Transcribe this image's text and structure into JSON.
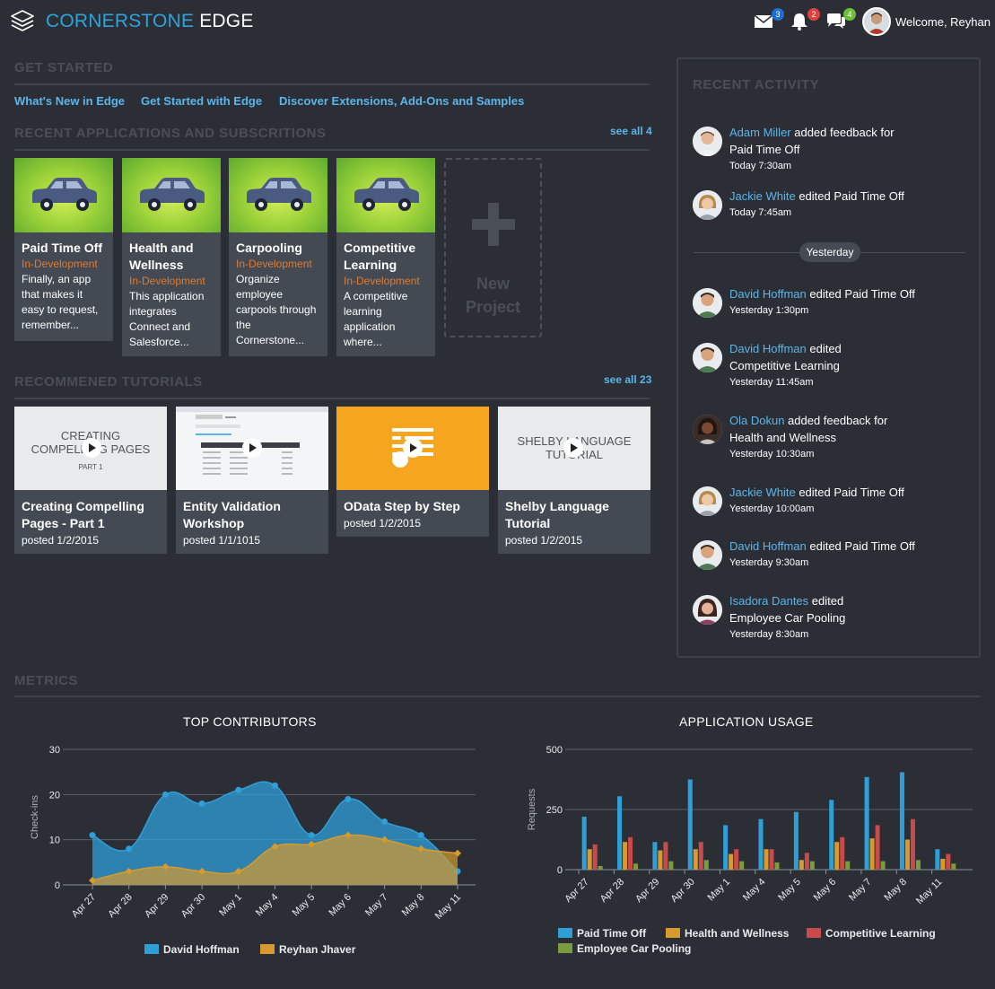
{
  "header": {
    "brand_part1": "CORNERSTONE",
    "brand_part2": "EDGE",
    "mail_count": "3",
    "alert_count": "2",
    "chat_count": "4",
    "welcome": "Welcome, Reyhan",
    "colors": {
      "accent": "#2ea3dc",
      "mail_badge": "#1f6fd1",
      "alert_badge": "#e04040",
      "chat_badge": "#6cbf3c"
    }
  },
  "get_started": {
    "title": "GET STARTED",
    "links": [
      "What's New in Edge",
      "Get Started with Edge",
      "Discover Extensions, Add-Ons and Samples"
    ]
  },
  "recent_apps": {
    "title": "RECENT APPLICATIONS AND SUBSCRITIONS",
    "see_all": "see all 4",
    "apps": [
      {
        "title_l1": "Paid Time Off",
        "title_l2": "",
        "status": "In-Development",
        "desc": [
          "Finally, an app",
          "that makes it",
          "easy to request,",
          "remember..."
        ]
      },
      {
        "title_l1": "Health and",
        "title_l2": "Wellness",
        "status": "In-Development",
        "desc": [
          "This application",
          "integrates",
          "Connect and",
          "Salesforce..."
        ]
      },
      {
        "title_l1": "Carpooling",
        "title_l2": "",
        "status": "In-Development",
        "desc": [
          "Organize",
          "employee",
          "carpools through",
          "the",
          "Cornerstone..."
        ]
      },
      {
        "title_l1": "Competitive",
        "title_l2": "Learning",
        "status": "In-Development",
        "desc": [
          "A competitive",
          "learning",
          "application",
          "where..."
        ]
      }
    ],
    "new_project_l1": "New",
    "new_project_l2": "Project"
  },
  "tutorials": {
    "title": "RECOMMENED TUTORIALS",
    "see_all": "see all 23",
    "items": [
      {
        "title_l1": "Creating Compelling",
        "title_l2": "Pages - Part 1",
        "date": "posted 1/2/2015",
        "thumb_l1": "CREATING",
        "thumb_l2": "COMPELLING PAGES",
        "thumb_l3": "PART 1"
      },
      {
        "title_l1": "Entity Validation",
        "title_l2": "Workshop",
        "date": "posted 1/1/1015"
      },
      {
        "title_l1": "OData Step by Step",
        "title_l2": "",
        "date": "posted 1/2/2015"
      },
      {
        "title_l1": "Shelby Language",
        "title_l2": "Tutorial",
        "date": "posted 1/2/2015",
        "thumb_l1": "SHELBY LANGUAGE",
        "thumb_l2": "TUTORIAL"
      }
    ]
  },
  "activity": {
    "title": "RECENT ACTIVITY",
    "divider": "Yesterday",
    "items": [
      {
        "who": "Adam Miller",
        "action": " added feedback for",
        "item": "Paid Time Off",
        "time": "Today 7:30am"
      },
      {
        "who": "Jackie White",
        "action": " edited ",
        "item": "Paid Time Off",
        "time": "Today 7:45am"
      },
      {
        "who": "David Hoffman",
        "action": " edited ",
        "item": "Paid Time Off",
        "time": "Yesterday 1:30pm"
      },
      {
        "who": "David Hoffman",
        "action": " edited",
        "item": "Competitive Learning",
        "time": "Yesterday 11:45am"
      },
      {
        "who": "Ola Dokun",
        "action": " added feedback for",
        "item": "Health and Wellness",
        "time": "Yesterday 10:30am"
      },
      {
        "who": "Jackie White",
        "action": " edited ",
        "item": "Paid Time Off",
        "time": "Yesterday 10:00am"
      },
      {
        "who": "David Hoffman",
        "action": " edited ",
        "item": "Paid Time Off",
        "time": "Yesterday 9:30am"
      },
      {
        "who": "Isadora Dantes",
        "action": " edited",
        "item": "Employee Car Pooling",
        "time": "Yesterday 8:30am"
      }
    ]
  },
  "metrics": {
    "title": "METRICS"
  },
  "chart_data": [
    {
      "type": "area",
      "title": "TOP CONTRIBUTORS",
      "ylabel": "Check-ins",
      "xlabel": "",
      "ylim": [
        0,
        30
      ],
      "yticks": [
        0,
        10,
        20,
        30
      ],
      "categories": [
        "Apr 27",
        "Apr 28",
        "Apr 29",
        "Apr 30",
        "May 1",
        "May 4",
        "May 5",
        "May 6",
        "May 7",
        "May 8",
        "May 11"
      ],
      "series": [
        {
          "name": "David Hoffman",
          "color": "#2f9fd8",
          "values": [
            11,
            8,
            20,
            18,
            21,
            22,
            11,
            19,
            14,
            11,
            3
          ]
        },
        {
          "name": "Reyhan Jhaver",
          "color": "#d69a2d",
          "values": [
            1,
            3,
            4,
            3,
            3,
            8.5,
            9,
            11,
            10,
            8,
            7
          ]
        }
      ],
      "grid": true,
      "legend": "bottom"
    },
    {
      "type": "bar",
      "title": "APPLICATION USAGE",
      "ylabel": "Requests",
      "xlabel": "",
      "ylim": [
        0,
        500
      ],
      "yticks": [
        0,
        250,
        500
      ],
      "categories": [
        "Apr 27",
        "Apr 28",
        "Apr 29",
        "Apr 30",
        "May 1",
        "May 4",
        "May 5",
        "May 6",
        "May 7",
        "May 8",
        "May 11"
      ],
      "series": [
        {
          "name": "Paid Time Off",
          "color": "#2f9fd8",
          "values": [
            220,
            305,
            115,
            375,
            185,
            210,
            240,
            290,
            385,
            405,
            85
          ]
        },
        {
          "name": "Health and Wellness",
          "color": "#d69a2d",
          "values": [
            85,
            115,
            80,
            85,
            65,
            85,
            40,
            115,
            130,
            125,
            45
          ]
        },
        {
          "name": "Competitive Learning",
          "color": "#c84a4a",
          "values": [
            105,
            135,
            115,
            115,
            85,
            85,
            70,
            135,
            185,
            210,
            65
          ]
        },
        {
          "name": "Employee Car Pooling",
          "color": "#7a9c3c",
          "values": [
            15,
            25,
            35,
            40,
            35,
            30,
            35,
            35,
            35,
            40,
            25
          ]
        }
      ],
      "grid": true,
      "legend": "bottom"
    }
  ]
}
